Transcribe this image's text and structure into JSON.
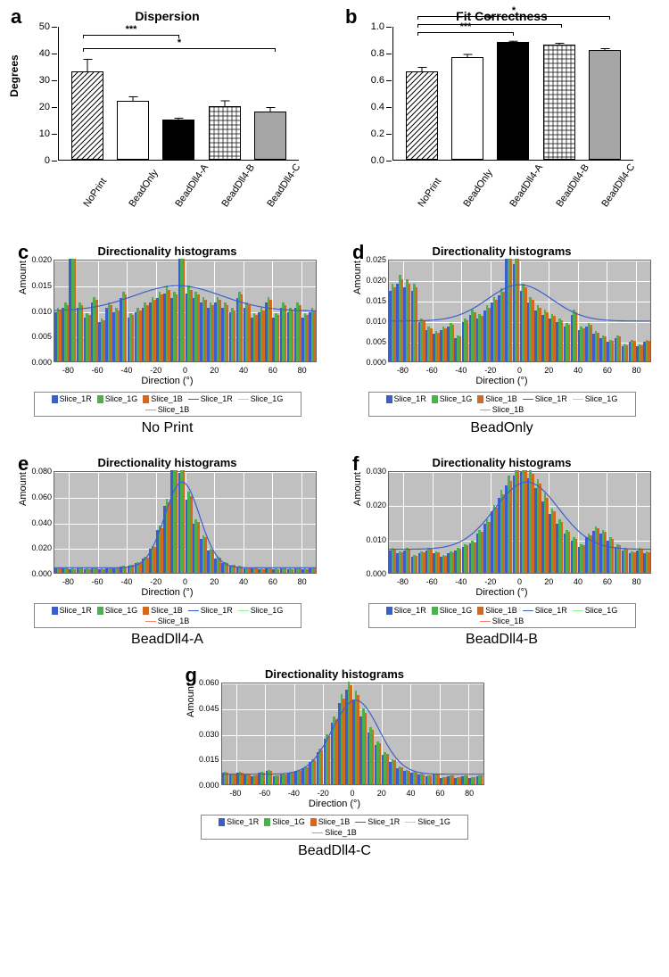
{
  "panel_a": {
    "label": "a",
    "title": "Dispersion",
    "ylabel": "Degrees",
    "ylim": [
      0,
      50
    ],
    "ytick_step": 10,
    "categories": [
      "NoPrint",
      "BeadOnly",
      "BeadDll4-A",
      "BeadDll4-B",
      "BeadDll4-C"
    ],
    "values": [
      33,
      22,
      15,
      20,
      18
    ],
    "errors": [
      5,
      2,
      1,
      2.5,
      2
    ],
    "patterns": [
      "diag",
      "none",
      "solid",
      "check",
      "vlines"
    ],
    "colors": {
      "diag": "#ffffff",
      "none": "#ffffff",
      "solid": "#000000",
      "check": "#ffffff",
      "vlines": "#ffffff"
    },
    "border_color": "#000000",
    "sigbars": [
      {
        "from": 0,
        "to": 2,
        "y": 47,
        "label": "***"
      },
      {
        "from": 0,
        "to": 4,
        "y": 42,
        "label": "*"
      }
    ]
  },
  "panel_b": {
    "label": "b",
    "title": "Fit Correctness",
    "ylabel": "",
    "ylim": [
      0,
      1.0
    ],
    "ytick_step": 0.2,
    "categories": [
      "NoPrint",
      "BeadOnly",
      "BeadDll4-A",
      "BeadDll4-B",
      "BeadDll4-C"
    ],
    "values": [
      0.66,
      0.77,
      0.88,
      0.86,
      0.82
    ],
    "errors": [
      0.04,
      0.03,
      0.015,
      0.02,
      0.02
    ],
    "patterns": [
      "diag",
      "none",
      "solid",
      "check",
      "vlines"
    ],
    "sigbars": [
      {
        "from": 0,
        "to": 4,
        "y": 1.08,
        "label": "*"
      },
      {
        "from": 0,
        "to": 3,
        "y": 1.02,
        "label": "**"
      },
      {
        "from": 0,
        "to": 2,
        "y": 0.96,
        "label": "***"
      }
    ]
  },
  "hist_common": {
    "title": "Directionality histograms",
    "xlabel": "Direction (°)",
    "ylabel": "Amount",
    "xlim": [
      -90,
      90
    ],
    "xtick_step": 20,
    "series_colors": {
      "R": "#3a5fcd",
      "G": "#4caf50",
      "B": "#d2691e"
    },
    "curve_colors": {
      "R": "#3a5fcd",
      "G": "#90ee90",
      "B": "#fa8072"
    },
    "plot_bg": "#c0c0c0",
    "grid_color": "#ffffff",
    "legend": [
      "Slice_1R",
      "Slice_1G",
      "Slice_1B",
      "Slice_1R",
      "Slice_1G",
      "Slice_1B"
    ],
    "legend_types": [
      "bar",
      "bar",
      "bar",
      "line",
      "line",
      "line"
    ],
    "legend_colors": [
      "#3a5fcd",
      "#4caf50",
      "#d2691e",
      "#3a5fcd",
      "#90ee90",
      "#fa8072"
    ]
  },
  "panel_c": {
    "label": "c",
    "caption": "No Print",
    "ymax": 0.02,
    "ytick_step": 0.005,
    "bars": [
      0.01,
      0.011,
      0.021,
      0.011,
      0.009,
      0.012,
      0.008,
      0.011,
      0.01,
      0.013,
      0.009,
      0.01,
      0.011,
      0.012,
      0.013,
      0.014,
      0.013,
      0.022,
      0.014,
      0.013,
      0.012,
      0.011,
      0.012,
      0.011,
      0.01,
      0.013,
      0.011,
      0.009,
      0.01,
      0.012,
      0.009,
      0.011,
      0.01,
      0.011,
      0.009,
      0.01
    ],
    "curve": {
      "baseline": 0.01,
      "peak": 0.015,
      "center": -5,
      "sigma": 30
    }
  },
  "panel_d": {
    "label": "d",
    "caption": "BeadOnly",
    "ymax": 0.025,
    "ytick_step": 0.005,
    "bars": [
      0.018,
      0.02,
      0.019,
      0.018,
      0.01,
      0.008,
      0.007,
      0.008,
      0.009,
      0.006,
      0.01,
      0.012,
      0.011,
      0.013,
      0.015,
      0.017,
      0.028,
      0.025,
      0.018,
      0.015,
      0.013,
      0.012,
      0.011,
      0.01,
      0.009,
      0.012,
      0.008,
      0.009,
      0.007,
      0.006,
      0.005,
      0.006,
      0.004,
      0.005,
      0.004,
      0.005
    ],
    "curve": {
      "baseline": 0.01,
      "peak": 0.019,
      "center": 0,
      "sigma": 22
    }
  },
  "panel_e": {
    "label": "e",
    "caption": "BeadDll4-A",
    "ymax": 0.08,
    "ytick_step": 0.02,
    "bars": [
      0.004,
      0.004,
      0.003,
      0.004,
      0.003,
      0.004,
      0.003,
      0.004,
      0.004,
      0.005,
      0.006,
      0.008,
      0.012,
      0.02,
      0.035,
      0.055,
      0.085,
      0.082,
      0.06,
      0.04,
      0.028,
      0.018,
      0.012,
      0.008,
      0.006,
      0.005,
      0.004,
      0.004,
      0.003,
      0.004,
      0.003,
      0.004,
      0.003,
      0.004,
      0.003,
      0.004
    ],
    "curve": {
      "baseline": 0.004,
      "peak": 0.072,
      "center": -2,
      "sigma": 12
    }
  },
  "panel_f": {
    "label": "f",
    "caption": "BeadDll4-B",
    "ymax": 0.03,
    "ytick_step": 0.01,
    "bars": [
      0.007,
      0.006,
      0.007,
      0.005,
      0.006,
      0.007,
      0.006,
      0.005,
      0.006,
      0.007,
      0.008,
      0.009,
      0.012,
      0.015,
      0.019,
      0.023,
      0.027,
      0.03,
      0.031,
      0.029,
      0.026,
      0.022,
      0.018,
      0.015,
      0.012,
      0.01,
      0.008,
      0.011,
      0.013,
      0.012,
      0.01,
      0.008,
      0.007,
      0.006,
      0.007,
      0.006
    ],
    "curve": {
      "baseline": 0.007,
      "peak": 0.027,
      "center": 5,
      "sigma": 22
    }
  },
  "panel_g": {
    "label": "g",
    "caption": "BeadDll4-C",
    "ymax": 0.06,
    "ytick_step": 0.015,
    "bars": [
      0.007,
      0.006,
      0.007,
      0.006,
      0.005,
      0.007,
      0.008,
      0.005,
      0.006,
      0.007,
      0.008,
      0.01,
      0.014,
      0.02,
      0.028,
      0.038,
      0.05,
      0.058,
      0.052,
      0.042,
      0.032,
      0.024,
      0.018,
      0.014,
      0.01,
      0.008,
      0.007,
      0.006,
      0.005,
      0.006,
      0.004,
      0.005,
      0.004,
      0.005,
      0.004,
      0.005
    ],
    "curve": {
      "baseline": 0.006,
      "peak": 0.05,
      "center": 2,
      "sigma": 16
    }
  }
}
